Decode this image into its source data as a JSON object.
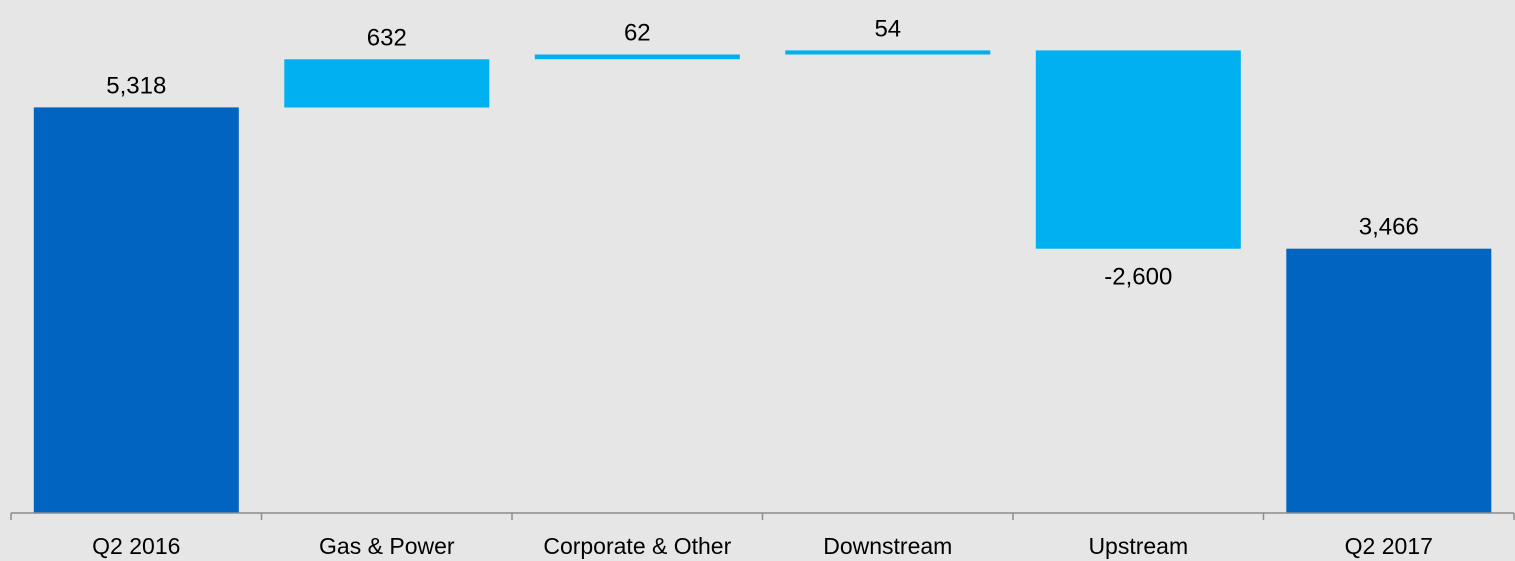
{
  "chart_data": {
    "type": "bar",
    "subtype": "waterfall",
    "title": "",
    "xlabel": "",
    "ylabel": "",
    "ylim": [
      0,
      6200
    ],
    "grid": false,
    "legend": "none",
    "categories": [
      "Q2 2016",
      "Gas & Power",
      "Corporate & Other",
      "Downstream",
      "Upstream",
      "Q2 2017"
    ],
    "values": [
      5318,
      632,
      62,
      54,
      -2600,
      3466
    ],
    "value_labels": [
      "5,318",
      "632",
      "62",
      "54",
      "-2,600",
      "3,466"
    ],
    "kinds": [
      "total",
      "delta",
      "delta",
      "delta",
      "delta",
      "total"
    ],
    "colors": {
      "total": "#0064c0",
      "delta": "#00b0f0",
      "background": "#e6e6e6",
      "axis": "#8c8c8c"
    }
  }
}
